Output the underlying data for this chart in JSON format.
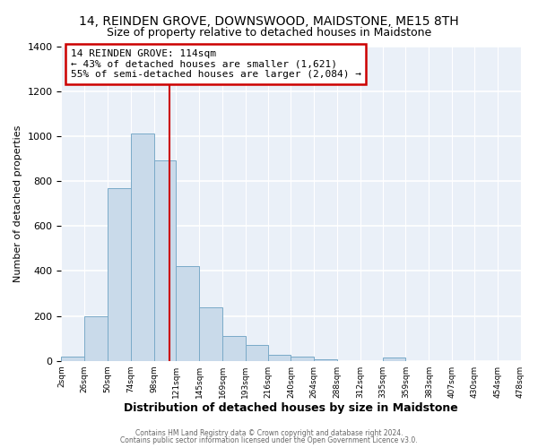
{
  "title": "14, REINDEN GROVE, DOWNSWOOD, MAIDSTONE, ME15 8TH",
  "subtitle": "Size of property relative to detached houses in Maidstone",
  "xlabel": "Distribution of detached houses by size in Maidstone",
  "ylabel": "Number of detached properties",
  "bar_color": "#c9daea",
  "bar_edge_color": "#7aaac8",
  "background_color": "#ffffff",
  "plot_bg_color": "#eaf0f8",
  "bins": [
    2,
    26,
    50,
    74,
    98,
    121,
    145,
    169,
    193,
    216,
    240,
    264,
    288,
    312,
    335,
    359,
    383,
    407,
    430,
    454,
    478
  ],
  "counts": [
    20,
    200,
    770,
    1010,
    890,
    420,
    240,
    110,
    70,
    25,
    20,
    5,
    0,
    0,
    15,
    0,
    0,
    0,
    0,
    0
  ],
  "property_size": 114,
  "vline_color": "#cc0000",
  "annotation_line1": "14 REINDEN GROVE: 114sqm",
  "annotation_line2": "← 43% of detached houses are smaller (1,621)",
  "annotation_line3": "55% of semi-detached houses are larger (2,084) →",
  "annotation_box_color": "#ffffff",
  "annotation_box_edge_color": "#cc0000",
  "tick_labels": [
    "2sqm",
    "26sqm",
    "50sqm",
    "74sqm",
    "98sqm",
    "121sqm",
    "145sqm",
    "169sqm",
    "193sqm",
    "216sqm",
    "240sqm",
    "264sqm",
    "288sqm",
    "312sqm",
    "335sqm",
    "359sqm",
    "383sqm",
    "407sqm",
    "430sqm",
    "454sqm",
    "478sqm"
  ],
  "ylim": [
    0,
    1400
  ],
  "yticks": [
    0,
    200,
    400,
    600,
    800,
    1000,
    1200,
    1400
  ],
  "footer_line1": "Contains HM Land Registry data © Crown copyright and database right 2024.",
  "footer_line2": "Contains public sector information licensed under the Open Government Licence v3.0."
}
